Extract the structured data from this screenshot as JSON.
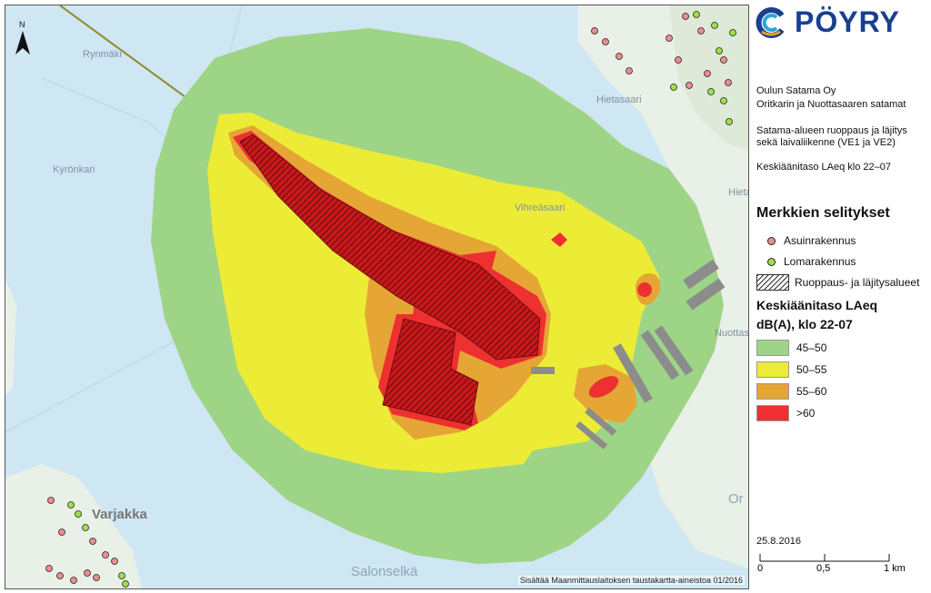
{
  "map": {
    "north_label": "N",
    "place_names": [
      "Rynmäki",
      "Kyrönkari",
      "Vihreäsaari",
      "Hietasaari",
      "Hietas",
      "Nuottas",
      "Varjakka",
      "Salonselkä",
      "Or"
    ],
    "attribution": "Sisältää Maanmittauslaitoksen taustakartta-aineistoa 01/2016",
    "colors": {
      "sea": "#cfe6f3",
      "land": "#e9f0e7",
      "zone_45_50": "#9ed486",
      "zone_50_55": "#ecec36",
      "zone_55_60": "#e5a635",
      "zone_over_60": "#ee3030",
      "dredging": "#b5171a"
    }
  },
  "panel": {
    "logo": {
      "text": "PÖYRY",
      "icon": "poyry-swirl-logo"
    },
    "client": "Oulun Satama Oy",
    "project": "Oritkarin ja Nuottasaaren satamat",
    "description_lines": [
      "Satama-alueen ruoppaus ja läjitys",
      "sekä laivaliikenne (VE1 ja VE2)"
    ],
    "map_subject": "Keskiäänitaso LAeq klo 22–07",
    "legend_title": "Merkkien selitykset",
    "legend_items": [
      {
        "label": "Asuinrakennus",
        "symbol": "residential-building-dot",
        "color": "#ec8e8e"
      },
      {
        "label": "Lomarakennus",
        "symbol": "holiday-building-dot",
        "color": "#9ee04a"
      },
      {
        "label": "Ruoppaus- ja läjitysalueet",
        "symbol": "hatched-area",
        "color": "#333333"
      }
    ],
    "noise_title_line1": "Keskiäänitaso LAeq",
    "noise_title_line2": "dB(A), klo 22-07",
    "noise_classes": [
      {
        "label": "45–50",
        "color": "#9ed486"
      },
      {
        "label": "50–55",
        "color": "#ecec36"
      },
      {
        "label": "55–60",
        "color": "#e5a635"
      },
      {
        "label": ">60",
        "color": "#ee3030"
      }
    ],
    "date": "25.8.2016",
    "scale_labels": [
      "0",
      "0,5",
      "1 km"
    ]
  }
}
